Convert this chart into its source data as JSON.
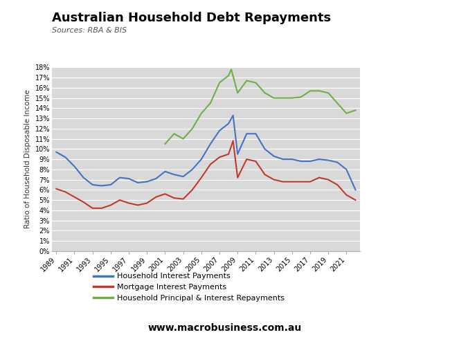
{
  "title": "Australian Household Debt Repayments",
  "subtitle": "Sources: RBA & BIS",
  "ylabel": "Ratio of Household Disposable Income",
  "watermark": "www.macrobusiness.com.au",
  "ylim": [
    0,
    18
  ],
  "yticks": [
    0,
    1,
    2,
    3,
    4,
    5,
    6,
    7,
    8,
    9,
    10,
    11,
    12,
    13,
    14,
    15,
    16,
    17,
    18
  ],
  "background_color": "#d9d9d9",
  "fig_background": "#ffffff",
  "years_blue": [
    1989,
    1990,
    1991,
    1992,
    1993,
    1994,
    1995,
    1996,
    1997,
    1998,
    1999,
    2000,
    2001,
    2002,
    2003,
    2004,
    2005,
    2006,
    2007,
    2008,
    2008.5,
    2009,
    2010,
    2011,
    2012,
    2013,
    2014,
    2015,
    2016,
    2017,
    2018,
    2019,
    2020,
    2021,
    2022
  ],
  "blue": [
    9.7,
    9.2,
    8.3,
    7.2,
    6.5,
    6.4,
    6.5,
    7.2,
    7.1,
    6.7,
    6.8,
    7.1,
    7.8,
    7.5,
    7.3,
    8.0,
    9.0,
    10.5,
    11.8,
    12.5,
    13.3,
    9.5,
    11.5,
    11.5,
    10.0,
    9.3,
    9.0,
    9.0,
    8.8,
    8.8,
    9.0,
    8.9,
    8.7,
    8.0,
    6.0
  ],
  "years_red": [
    1989,
    1990,
    1991,
    1992,
    1993,
    1994,
    1995,
    1996,
    1997,
    1998,
    1999,
    2000,
    2001,
    2002,
    2003,
    2004,
    2005,
    2006,
    2007,
    2008,
    2008.5,
    2009,
    2010,
    2011,
    2012,
    2013,
    2014,
    2015,
    2016,
    2017,
    2018,
    2019,
    2020,
    2021,
    2022
  ],
  "red": [
    6.1,
    5.8,
    5.3,
    4.8,
    4.2,
    4.2,
    4.5,
    5.0,
    4.7,
    4.5,
    4.7,
    5.3,
    5.6,
    5.2,
    5.1,
    6.0,
    7.2,
    8.5,
    9.2,
    9.5,
    10.8,
    7.2,
    9.0,
    8.8,
    7.5,
    7.0,
    6.8,
    6.8,
    6.8,
    6.8,
    7.2,
    7.0,
    6.5,
    5.5,
    5.0
  ],
  "years_green": [
    2001,
    2002,
    2003,
    2004,
    2005,
    2006,
    2007,
    2008,
    2008.3,
    2009,
    2010,
    2011,
    2012,
    2013,
    2014,
    2015,
    2016,
    2017,
    2018,
    2019,
    2020,
    2021,
    2022
  ],
  "green": [
    10.5,
    11.5,
    11.0,
    12.0,
    13.5,
    14.5,
    16.5,
    17.2,
    17.8,
    15.5,
    16.7,
    16.5,
    15.5,
    15.0,
    15.0,
    15.0,
    15.1,
    15.7,
    15.7,
    15.5,
    14.5,
    13.5,
    13.8
  ],
  "legend_blue": "Household Interest Payments",
  "legend_red": "Mortgage Interest Payments",
  "legend_green": "Household Principal & Interest Repayments",
  "macro_box_color": "#cc1111",
  "line_color_blue": "#4472c4",
  "line_color_red": "#c0392b",
  "line_color_green": "#70ad47"
}
